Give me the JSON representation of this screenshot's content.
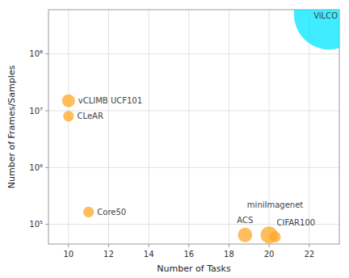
{
  "chart_data": {
    "type": "scatter",
    "xlabel": "Number of Tasks",
    "ylabel": "Number of Frames/Samples",
    "labels": [
      "vCLIMB UCF101",
      "CLeAR",
      "Core50",
      "ACS",
      "CIFAR100",
      "miniImagenet",
      "ViLCO"
    ],
    "x": [
      10,
      10,
      11,
      18.8,
      20,
      20.3,
      23
    ],
    "values": [
      15000000,
      8000000,
      165000,
      65000,
      65000,
      60000,
      500000000
    ],
    "sizes": [
      400,
      280,
      280,
      500,
      700,
      300,
      12000
    ],
    "colors": [
      "#FFA726",
      "#FFA726",
      "#FFA726",
      "#FFA726",
      "#FFA726",
      "#FFA726",
      "#00E5FF"
    ],
    "xlim": [
      9,
      23.5
    ],
    "ylim": [
      45000,
      600000000
    ],
    "xticks": [
      10,
      12,
      14,
      16,
      18,
      20,
      22
    ],
    "yticks": [
      {
        "value": 100000,
        "label": "10⁵"
      },
      {
        "value": 1000000,
        "label": "10⁶"
      },
      {
        "value": 10000000,
        "label": "10⁷"
      },
      {
        "value": 100000000,
        "label": "10⁸"
      }
    ],
    "log": "y",
    "grid": true
  }
}
